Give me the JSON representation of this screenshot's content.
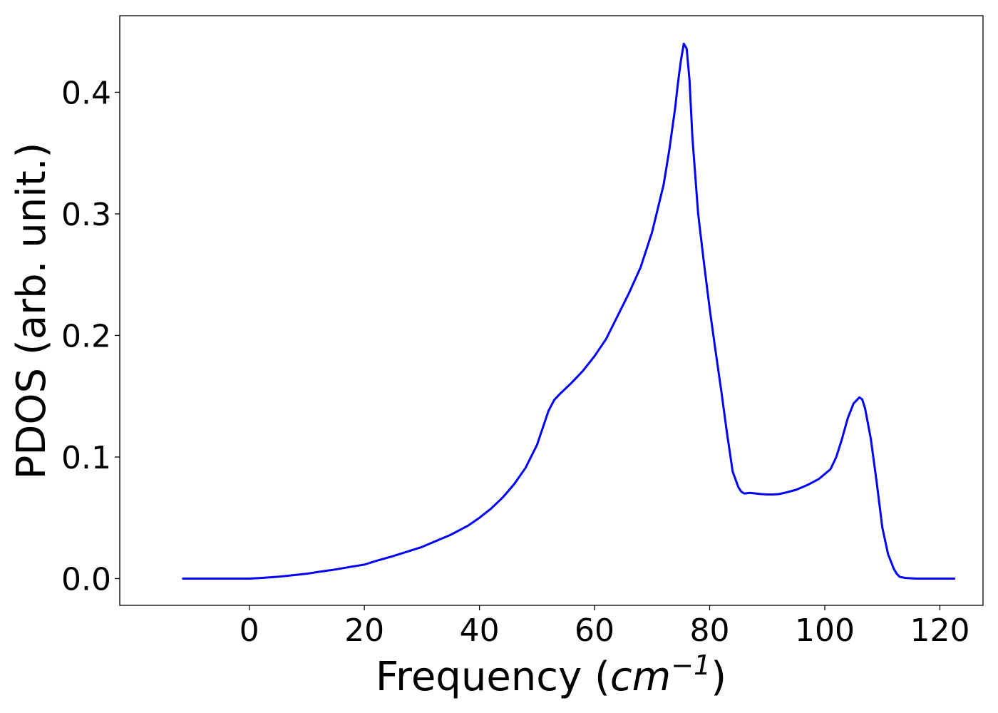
{
  "chart_data": {
    "type": "line",
    "title": "",
    "xlabel": "Frequency (cm−1)",
    "xlabel_parts": {
      "prefix": "Frequency (",
      "unit": "cm",
      "exponent": "−1",
      "suffix": ")"
    },
    "ylabel": "PDOS (arb. unit.)",
    "xlim": [
      -22.5,
      127.5
    ],
    "ylim": [
      -0.022,
      0.463
    ],
    "xticks": [
      0,
      20,
      40,
      60,
      80,
      100,
      120
    ],
    "yticks": [
      0.0,
      0.1,
      0.2,
      0.3,
      0.4
    ],
    "xtick_labels": [
      "0",
      "20",
      "40",
      "60",
      "80",
      "100",
      "120"
    ],
    "ytick_labels": [
      "0.0",
      "0.1",
      "0.2",
      "0.3",
      "0.4"
    ],
    "grid": false,
    "legend": false,
    "series": [
      {
        "color": "#0000ff",
        "x": [
          -11.5,
          -5,
          0,
          2,
          5,
          8,
          10,
          12,
          15,
          18,
          20,
          22,
          25,
          28,
          30,
          33,
          35,
          38,
          40,
          42,
          44,
          46,
          48,
          50,
          51,
          52,
          53,
          54,
          55,
          56,
          58,
          60,
          62,
          64,
          66,
          68,
          70,
          72,
          73,
          74,
          74.5,
          75,
          75.5,
          76,
          76.5,
          77,
          78,
          79,
          80,
          81,
          82,
          83,
          84,
          85,
          85.5,
          86,
          87,
          88,
          89,
          90,
          91,
          92,
          93,
          95,
          97,
          99,
          101,
          102,
          103,
          104,
          105,
          106,
          106.5,
          107,
          108,
          109,
          110,
          111,
          112,
          112.5,
          113,
          114,
          116,
          118,
          122.5
        ],
        "y": [
          0.0,
          0.0,
          0.0,
          0.0005,
          0.0015,
          0.003,
          0.004,
          0.0055,
          0.0075,
          0.01,
          0.0115,
          0.0145,
          0.0185,
          0.023,
          0.026,
          0.032,
          0.036,
          0.0435,
          0.05,
          0.0575,
          0.0665,
          0.0775,
          0.091,
          0.11,
          0.124,
          0.138,
          0.147,
          0.152,
          0.1565,
          0.161,
          0.171,
          0.183,
          0.197,
          0.216,
          0.235,
          0.256,
          0.285,
          0.324,
          0.353,
          0.387,
          0.408,
          0.426,
          0.44,
          0.436,
          0.41,
          0.363,
          0.3,
          0.26,
          0.222,
          0.188,
          0.155,
          0.12,
          0.088,
          0.075,
          0.0715,
          0.07,
          0.0705,
          0.07,
          0.0695,
          0.0692,
          0.0692,
          0.0695,
          0.0705,
          0.073,
          0.077,
          0.082,
          0.09,
          0.1,
          0.115,
          0.132,
          0.144,
          0.149,
          0.1475,
          0.14,
          0.115,
          0.08,
          0.042,
          0.02,
          0.008,
          0.004,
          0.0015,
          0.0005,
          0.0,
          0.0,
          0.0
        ]
      }
    ]
  }
}
